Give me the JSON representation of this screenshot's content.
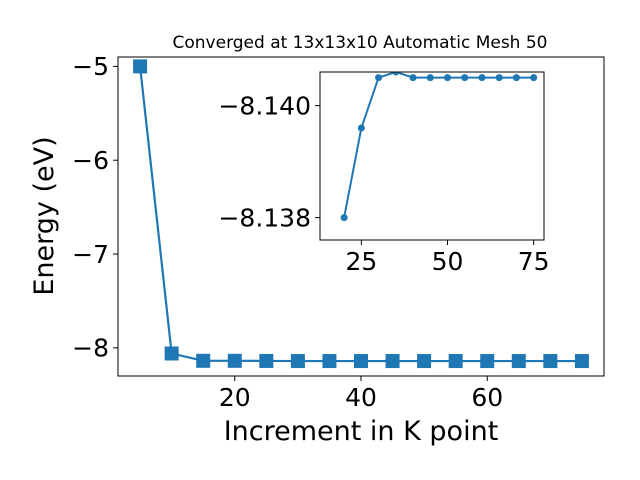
{
  "chart_data": [
    {
      "type": "line",
      "title": "Converged at 13x13x10 Automatic Mesh 50",
      "xlabel": "Increment in K point",
      "ylabel": "Energy (eV)",
      "xlim": [
        1.5,
        78.5
      ],
      "ylim": [
        -8.3,
        -4.9
      ],
      "x_ticks": [
        20,
        40,
        60
      ],
      "x_tick_labels": [
        "20",
        "40",
        "60"
      ],
      "y_ticks": [
        -8,
        -7,
        -6,
        -5
      ],
      "y_tick_labels": [
        "−8",
        "−7",
        "−6",
        "−5"
      ],
      "marker": "square",
      "series": [
        {
          "color": "#1f77b4",
          "x": [
            5,
            10,
            15,
            20,
            25,
            30,
            35,
            40,
            45,
            50,
            55,
            60,
            65,
            70,
            75
          ],
          "y": [
            -5.0,
            -8.06,
            -8.138,
            -8.138,
            -8.1396,
            -8.1405,
            -8.1406,
            -8.1405,
            -8.1405,
            -8.1405,
            -8.1405,
            -8.1405,
            -8.1405,
            -8.1405,
            -8.1405
          ]
        }
      ]
    },
    {
      "type": "line",
      "role": "inset",
      "xlim": [
        13,
        78
      ],
      "ylim": [
        -8.1406,
        -8.1376
      ],
      "inverted_y": true,
      "x_ticks": [
        25,
        50,
        75
      ],
      "x_tick_labels": [
        "25",
        "50",
        "75"
      ],
      "y_ticks": [
        -8.14,
        -8.138
      ],
      "y_tick_labels": [
        "−8.140",
        "−8.138"
      ],
      "marker": "circle",
      "series": [
        {
          "color": "#1f77b4",
          "x": [
            20,
            25,
            30,
            35,
            40,
            45,
            50,
            55,
            60,
            65,
            70,
            75
          ],
          "y": [
            -8.138,
            -8.1396,
            -8.1405,
            -8.1406,
            -8.1405,
            -8.1405,
            -8.1405,
            -8.1405,
            -8.1405,
            -8.1405,
            -8.1405,
            -8.1405
          ]
        }
      ]
    }
  ]
}
